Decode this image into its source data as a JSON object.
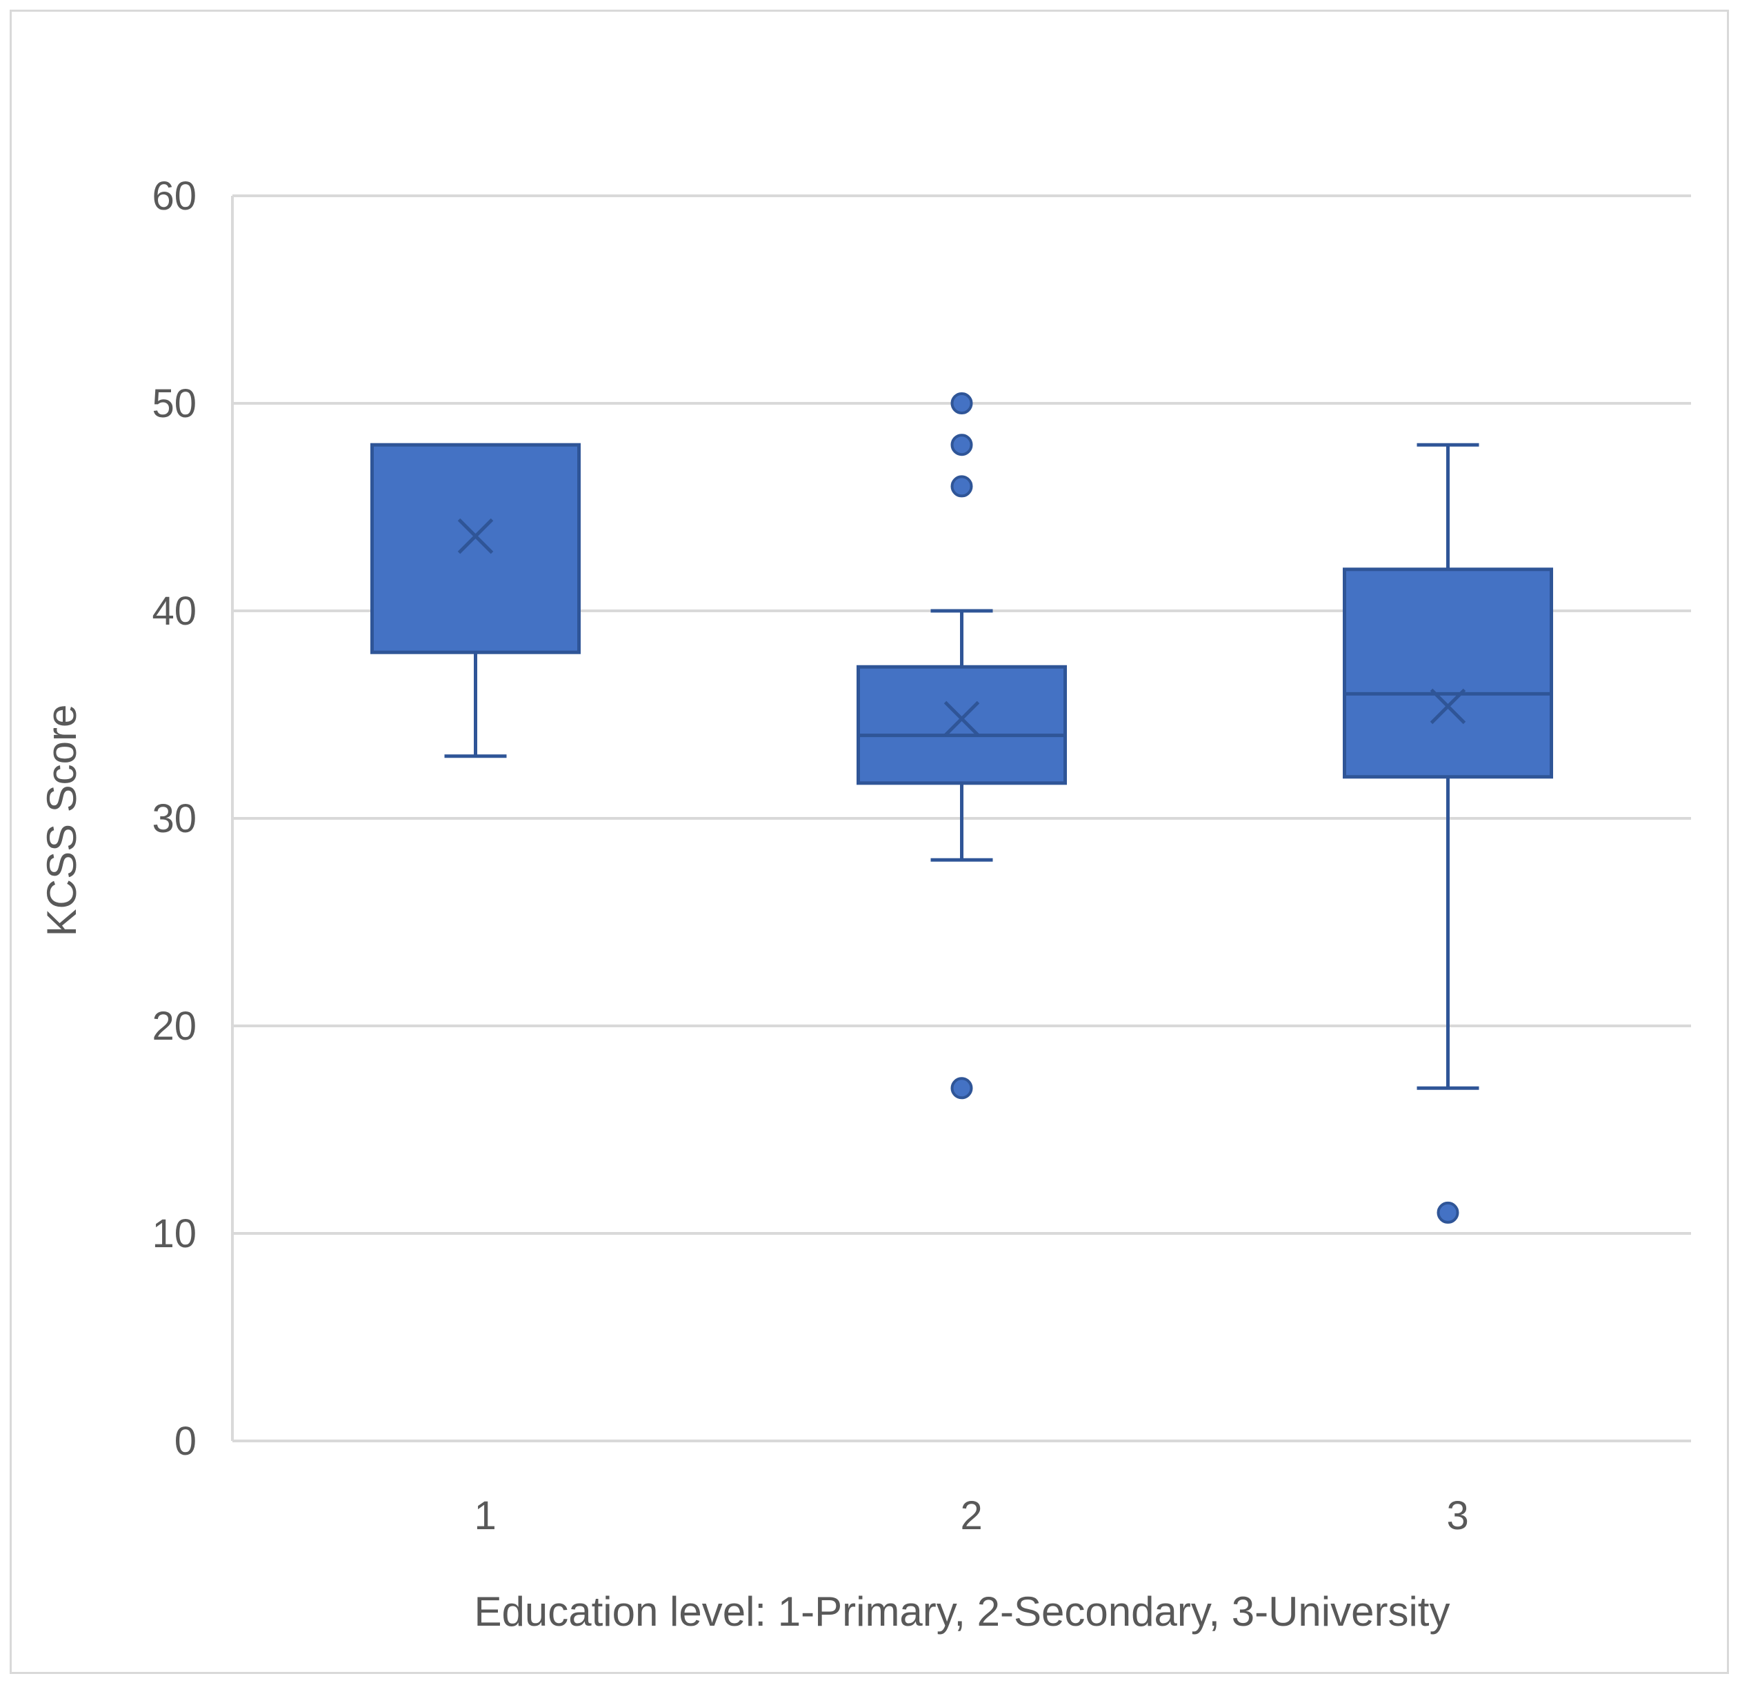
{
  "chart_data": {
    "type": "box",
    "title": "",
    "xlabel": "Education level: 1-Primary, 2-Secondary, 3-University",
    "ylabel": "KCSS Score",
    "ylim": [
      0,
      60
    ],
    "yticks": [
      0,
      10,
      20,
      30,
      40,
      50,
      60
    ],
    "grid": true,
    "colors": {
      "box_fill": "#4472c4",
      "box_stroke": "#2f5597",
      "grid": "#d9d9d9",
      "text": "#595959"
    },
    "categories": [
      "1",
      "2",
      "3"
    ],
    "boxes": [
      {
        "category": "1",
        "whisker_low": 33,
        "q1": 38,
        "median": 48,
        "q3": 48,
        "whisker_high": 48,
        "mean": 43.6,
        "outliers": []
      },
      {
        "category": "2",
        "whisker_low": 28,
        "q1": 31.7,
        "median": 34,
        "q3": 37.3,
        "whisker_high": 40,
        "mean": 34.8,
        "outliers": [
          50,
          48,
          46,
          17
        ]
      },
      {
        "category": "3",
        "whisker_low": 17,
        "q1": 32,
        "median": 36,
        "q3": 42,
        "whisker_high": 48,
        "mean": 35.4,
        "outliers": [
          11
        ]
      }
    ]
  }
}
